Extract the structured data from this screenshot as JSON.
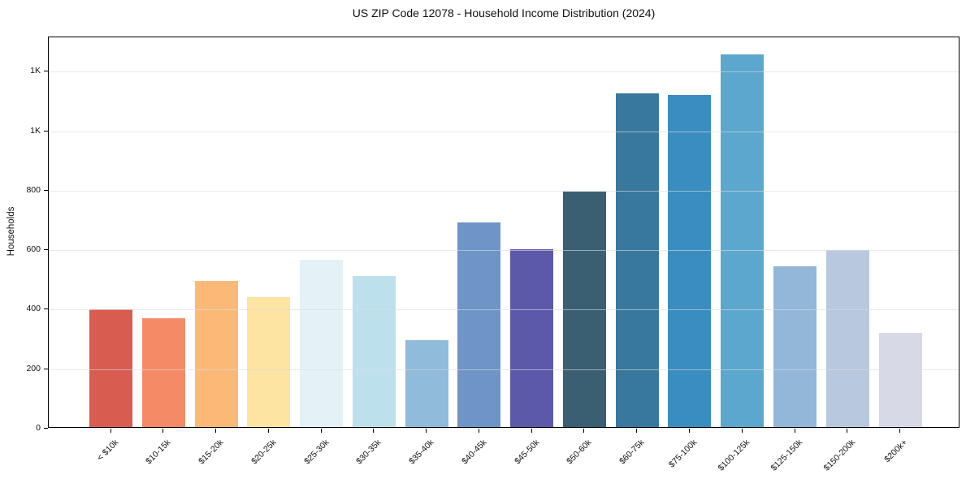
{
  "chart_data": {
    "type": "bar",
    "title": "US ZIP Code 12078 - Household Income Distribution (2024)",
    "xlabel": "",
    "ylabel": "Households",
    "categories": [
      "< $10k",
      "$10-15k",
      "$15-20k",
      "$20-25k",
      "$25-30k",
      "$30-35k",
      "$35-40k",
      "$40-45k",
      "$45-50k",
      "$50-60k",
      "$60-75k",
      "$75-100k",
      "$100-125k",
      "$125-150k",
      "$150-200k",
      "$200k+"
    ],
    "values": [
      397,
      367,
      491,
      437,
      562,
      508,
      293,
      687,
      598,
      791,
      1122,
      1118,
      1252,
      541,
      595,
      317
    ],
    "bar_colors": [
      "#d85c50",
      "#f58a67",
      "#fbb977",
      "#fde4a2",
      "#e4f2f7",
      "#bde0ed",
      "#90bbda",
      "#6e94c8",
      "#5c59aa",
      "#3a5f72",
      "#38789e",
      "#398dc0",
      "#5ca7ce",
      "#92b7d9",
      "#b8c8df",
      "#d8d9e7"
    ],
    "ylim": [
      0,
      1316
    ],
    "ytick_values": [
      0,
      200,
      400,
      600,
      800,
      1000,
      1200
    ],
    "ytick_labels": [
      "0",
      "200",
      "400",
      "600",
      "800",
      "1K",
      "1K"
    ],
    "grid": "horizontal",
    "legend": "none",
    "background_color": "#ffffff",
    "grid_color": "#e8e8e8",
    "axis_color": "#000000"
  }
}
